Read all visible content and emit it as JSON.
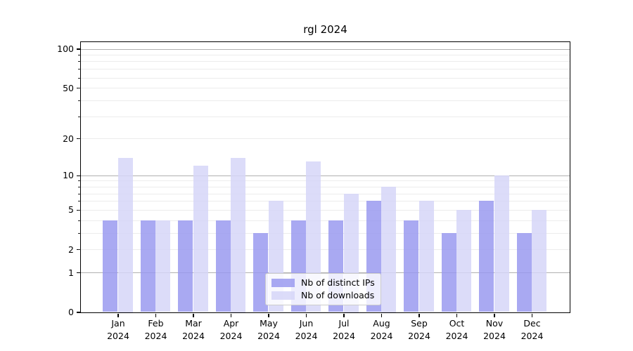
{
  "figure": {
    "background": "#ffffff"
  },
  "chart_data": {
    "type": "bar",
    "title": "rgl 2024",
    "xlabel": "",
    "ylabel": "",
    "categories": [
      "Jan",
      "Feb",
      "Mar",
      "Apr",
      "May",
      "Jun",
      "Jul",
      "Aug",
      "Sep",
      "Oct",
      "Nov",
      "Dec"
    ],
    "category_year": "2024",
    "series": [
      {
        "name": "Nb of distinct IPs",
        "color": "#9a9af0",
        "values": [
          4,
          4,
          4,
          4,
          3,
          4,
          4,
          6,
          4,
          3,
          6,
          3
        ]
      },
      {
        "name": "Nb of downloads",
        "color": "#d6d6f8",
        "values": [
          14,
          4,
          12,
          14,
          6,
          13,
          7,
          8,
          6,
          5,
          10,
          5
        ]
      }
    ],
    "y_axis": {
      "scale": "log10(1+x)",
      "max": 100,
      "tick_values": [
        0,
        1,
        2,
        5,
        10,
        20,
        50,
        100
      ],
      "tick_labels": [
        "0",
        "1",
        "2",
        "5",
        "10",
        "20",
        "50",
        "100"
      ],
      "major_grid_values": [
        1,
        10,
        100
      ],
      "minor_grid_values": [
        2,
        3,
        4,
        5,
        6,
        7,
        8,
        9,
        20,
        30,
        40,
        50,
        60,
        70,
        80,
        90
      ]
    },
    "legend": {
      "position": "lower center",
      "entries": [
        "Nb of distinct IPs",
        "Nb of downloads"
      ]
    },
    "grid": true
  },
  "colors": {
    "grid_major": "#b0b0b0",
    "grid_minor": "#ececec",
    "axis": "#000000",
    "text": "#000000",
    "background": "#ffffff"
  }
}
